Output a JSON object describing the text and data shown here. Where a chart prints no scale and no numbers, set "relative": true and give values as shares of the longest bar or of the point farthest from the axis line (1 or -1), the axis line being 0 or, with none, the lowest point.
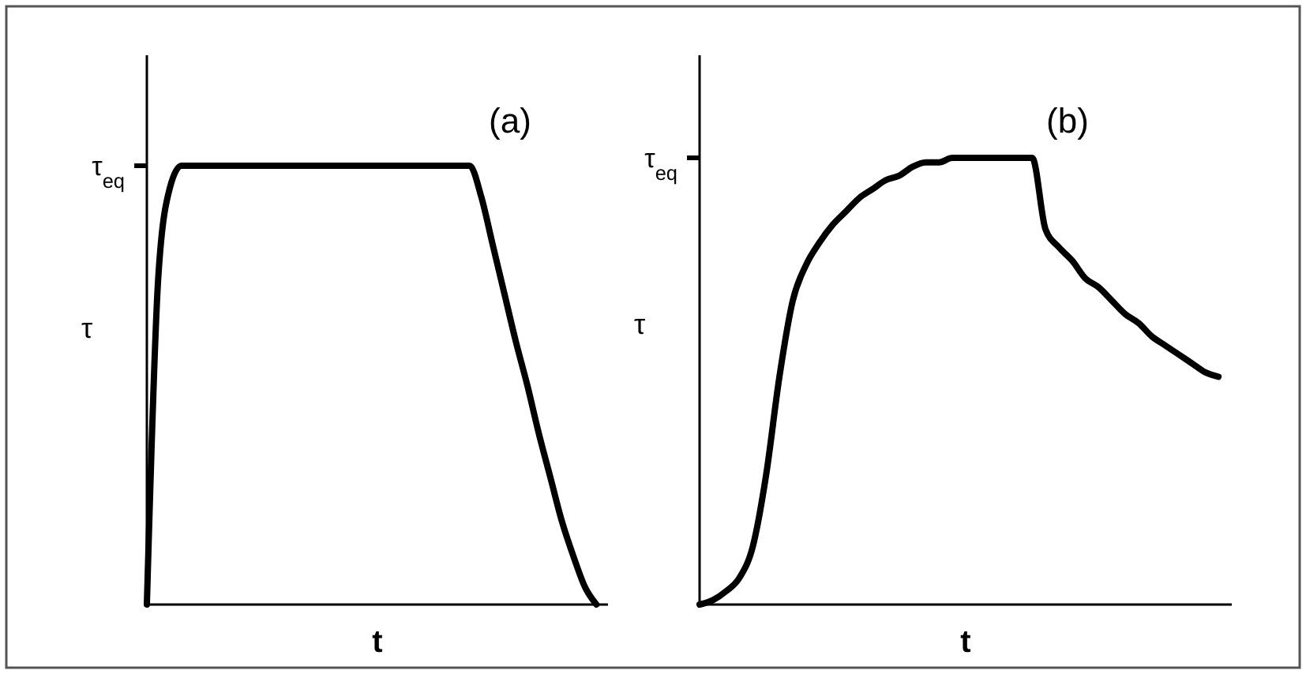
{
  "chart_data": [
    {
      "type": "line",
      "relative": true,
      "xlabel": "t",
      "ylabel": "τ",
      "annotations": [
        "(a)",
        "τ$_{eq}$"
      ],
      "categories": [
        null,
        null,
        null,
        null,
        null,
        null,
        null,
        null,
        null,
        null,
        null,
        null,
        null,
        null,
        null,
        null,
        null,
        null,
        null,
        null,
        null,
        null,
        null,
        null,
        null,
        null,
        null,
        null,
        null,
        null,
        null,
        null,
        null,
        null,
        null,
        null,
        null,
        null,
        null,
        null,
        null
      ],
      "series": [
        {
          "color": "#000000",
          "values": [
            0,
            0.75,
            0.95,
            1,
            1,
            1,
            1,
            1,
            1,
            1,
            1,
            1,
            1,
            1,
            1,
            1,
            1,
            1,
            1,
            1,
            1,
            1,
            1,
            1,
            1,
            1,
            1,
            1,
            1,
            0.93,
            0.82,
            0.71,
            0.6,
            0.5,
            0.39,
            0.29,
            0.19,
            0.11,
            0.04,
            0,
            null
          ]
        }
      ]
    },
    {
      "type": "line",
      "relative": true,
      "xlabel": "t",
      "ylabel": "τ",
      "annotations": [
        "(b)",
        "τ$_{eq}$"
      ],
      "categories": [
        null,
        null,
        null,
        null,
        null,
        null,
        null,
        null,
        null,
        null,
        null,
        null,
        null,
        null,
        null,
        null,
        null,
        null,
        null,
        null,
        null,
        null,
        null,
        null,
        null,
        null,
        null,
        null,
        null,
        null,
        null,
        null,
        null,
        null,
        null,
        null,
        null,
        null,
        null,
        null,
        null
      ],
      "series": [
        {
          "color": "#000000",
          "values": [
            0,
            0.01,
            0.03,
            0.06,
            0.13,
            0.29,
            0.51,
            0.68,
            0.76,
            0.81,
            0.85,
            0.88,
            0.91,
            0.93,
            0.95,
            0.96,
            0.98,
            0.99,
            0.99,
            1,
            1,
            1,
            1,
            1,
            1,
            1,
            0.84,
            0.8,
            0.77,
            0.73,
            0.71,
            0.68,
            0.65,
            0.63,
            0.6,
            0.58,
            0.56,
            0.54,
            0.52,
            0.51,
            null
          ]
        }
      ]
    }
  ]
}
